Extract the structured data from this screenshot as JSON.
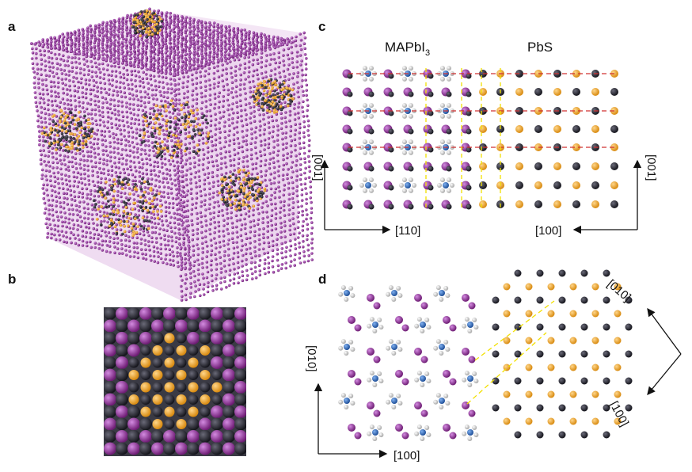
{
  "panels": {
    "a": {
      "letter": "a"
    },
    "b": {
      "letter": "b"
    },
    "c": {
      "letter": "c",
      "label_left": "MAPbI",
      "label_left_sub": "3",
      "label_right": "PbS",
      "axis_bottom_left": "[110]",
      "axis_bottom_right": "[100]",
      "axis_side_left": "[001]",
      "axis_side_right": "[001]"
    },
    "d": {
      "letter": "d",
      "axis_left": "[010]",
      "axis_bottom": "[100]",
      "axis_rot_top": "[010]",
      "axis_rot_bottom": "[100]"
    }
  },
  "colors": {
    "iodine": "#8a2a8e",
    "lead": "#2a2a33",
    "sulfur": "#f0a020",
    "nitrogen": "#2a66b8",
    "hydrogen": "#e8e8e8",
    "interface": "#f2e000",
    "stacking": "#d03030"
  }
}
